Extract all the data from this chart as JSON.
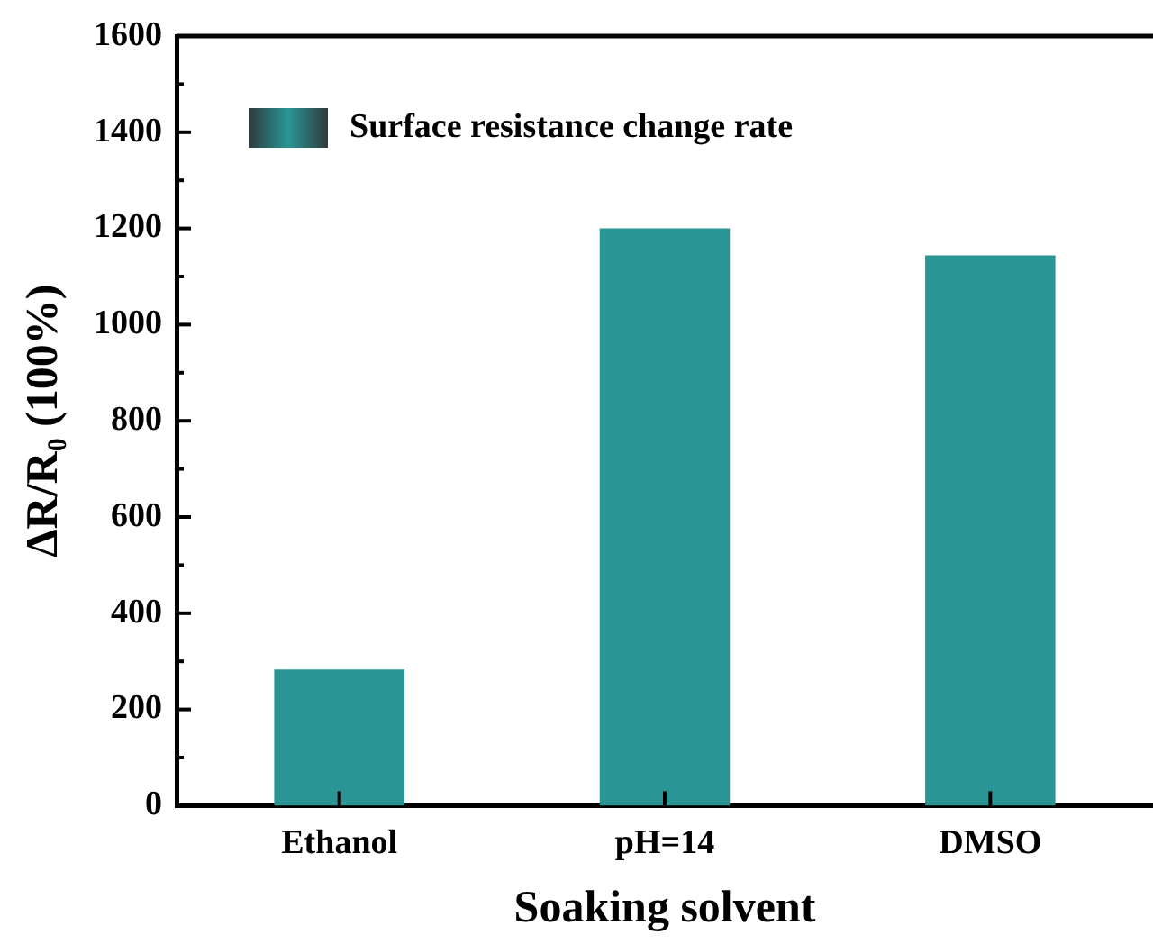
{
  "chart_data": {
    "type": "bar",
    "xlabel": "Soaking solvent",
    "ylabel": "ΔR/R₀ (100%)",
    "categories": [
      "Ethanol",
      "pH=14",
      "DMSO"
    ],
    "series": [
      {
        "name": "Surface resistance change rate",
        "color": "#2a9595",
        "values": [
          283,
          1200,
          1144
        ]
      }
    ],
    "ylim": [
      0,
      1600
    ],
    "yticks": [
      0,
      200,
      400,
      600,
      800,
      1000,
      1200,
      1400,
      1600
    ],
    "grid": false,
    "legend": "top left"
  }
}
